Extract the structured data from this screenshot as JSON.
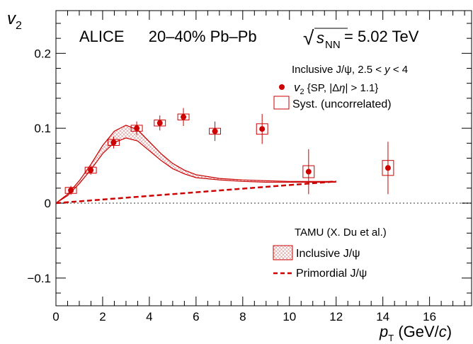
{
  "chart_data": {
    "type": "scatter",
    "title_parts": {
      "experiment": "ALICE",
      "centrality": "20–40% Pb–Pb",
      "sqrt": "√",
      "s": "s",
      "nn": "NN",
      "energy": " = 5.02 TeV"
    },
    "xlabel": {
      "p": "p",
      "t": "T",
      "units": " (GeV/",
      "c": "c",
      "close": ")"
    },
    "ylabel": {
      "v": "v",
      "sub": "2"
    },
    "xlim": [
      0,
      17.8
    ],
    "ylim": [
      -0.137,
      0.257
    ],
    "x_ticks": [
      0,
      2,
      4,
      6,
      8,
      10,
      12,
      14,
      16
    ],
    "y_ticks": [
      -0.1,
      0,
      0.1,
      0.2
    ],
    "y_tick_labels": [
      "−0.1",
      "0",
      "0.1",
      "0.2"
    ],
    "x_tick_labels": [
      "0",
      "2",
      "4",
      "6",
      "8",
      "10",
      "12",
      "14",
      "16"
    ],
    "zero_line": true,
    "legend_top": {
      "header_pre": "Inclusive J/ψ, 2.5 < ",
      "header_y": "y",
      "header_post": " < 4",
      "points_v": "v",
      "points_sub": "2",
      "points_pre": " {SP, |Δ",
      "points_eta": "η",
      "points_post": "| > 1.1}",
      "syst": "Syst. (uncorrelated)"
    },
    "legend_bottom": {
      "header": "TAMU (X. Du et al.)",
      "inclusive": "Inclusive J/ψ",
      "primordial": "Primordial J/ψ"
    },
    "series": [
      {
        "name": "v2 {SP, |Δη| > 1.1}",
        "color": "#cc0000",
        "points": [
          {
            "x": 0.64,
            "y": 0.017,
            "err": 0.006,
            "syst": 0.004,
            "bw": 0.3
          },
          {
            "x": 1.49,
            "y": 0.044,
            "err": 0.006,
            "syst": 0.004,
            "bw": 0.3
          },
          {
            "x": 2.47,
            "y": 0.081,
            "err": 0.008,
            "syst": 0.004,
            "bw": 0.3
          },
          {
            "x": 3.46,
            "y": 0.1,
            "err": 0.009,
            "syst": 0.004,
            "bw": 0.3
          },
          {
            "x": 4.45,
            "y": 0.107,
            "err": 0.01,
            "syst": 0.004,
            "bw": 0.3
          },
          {
            "x": 5.46,
            "y": 0.115,
            "err": 0.012,
            "syst": 0.004,
            "bw": 0.3
          },
          {
            "x": 6.81,
            "y": 0.096,
            "err": 0.013,
            "syst": 0.004,
            "bw": 0.3
          },
          {
            "x": 8.83,
            "y": 0.099,
            "err": 0.02,
            "syst": 0.007,
            "bw": 0.3
          },
          {
            "x": 10.82,
            "y": 0.042,
            "err": 0.03,
            "syst": 0.008,
            "bw": 0.3
          },
          {
            "x": 14.22,
            "y": 0.047,
            "err": 0.035,
            "syst": 0.01,
            "bw": 0.3
          }
        ]
      }
    ],
    "models": {
      "color": "#cc0000",
      "inclusive_upper": [
        [
          0,
          0
        ],
        [
          0.5,
          0.012
        ],
        [
          1,
          0.03
        ],
        [
          1.5,
          0.052
        ],
        [
          2,
          0.077
        ],
        [
          2.5,
          0.096
        ],
        [
          3,
          0.104
        ],
        [
          3.5,
          0.098
        ],
        [
          4,
          0.082
        ],
        [
          4.5,
          0.066
        ],
        [
          5,
          0.053
        ],
        [
          5.5,
          0.044
        ],
        [
          6,
          0.038
        ],
        [
          7,
          0.033
        ],
        [
          8,
          0.031
        ],
        [
          9,
          0.03
        ],
        [
          10,
          0.029
        ],
        [
          11,
          0.029
        ],
        [
          12,
          0.029
        ]
      ],
      "inclusive_lower": [
        [
          0,
          0
        ],
        [
          0.5,
          0.01
        ],
        [
          1,
          0.026
        ],
        [
          1.5,
          0.045
        ],
        [
          2,
          0.066
        ],
        [
          2.5,
          0.081
        ],
        [
          3,
          0.087
        ],
        [
          3.5,
          0.083
        ],
        [
          4,
          0.07
        ],
        [
          4.5,
          0.057
        ],
        [
          5,
          0.046
        ],
        [
          5.5,
          0.039
        ],
        [
          6,
          0.034
        ],
        [
          7,
          0.031
        ],
        [
          8,
          0.029
        ],
        [
          9,
          0.028
        ],
        [
          10,
          0.028
        ],
        [
          11,
          0.028
        ],
        [
          12,
          0.028
        ]
      ],
      "primordial": [
        [
          0,
          0
        ],
        [
          12,
          0.029
        ]
      ]
    }
  }
}
